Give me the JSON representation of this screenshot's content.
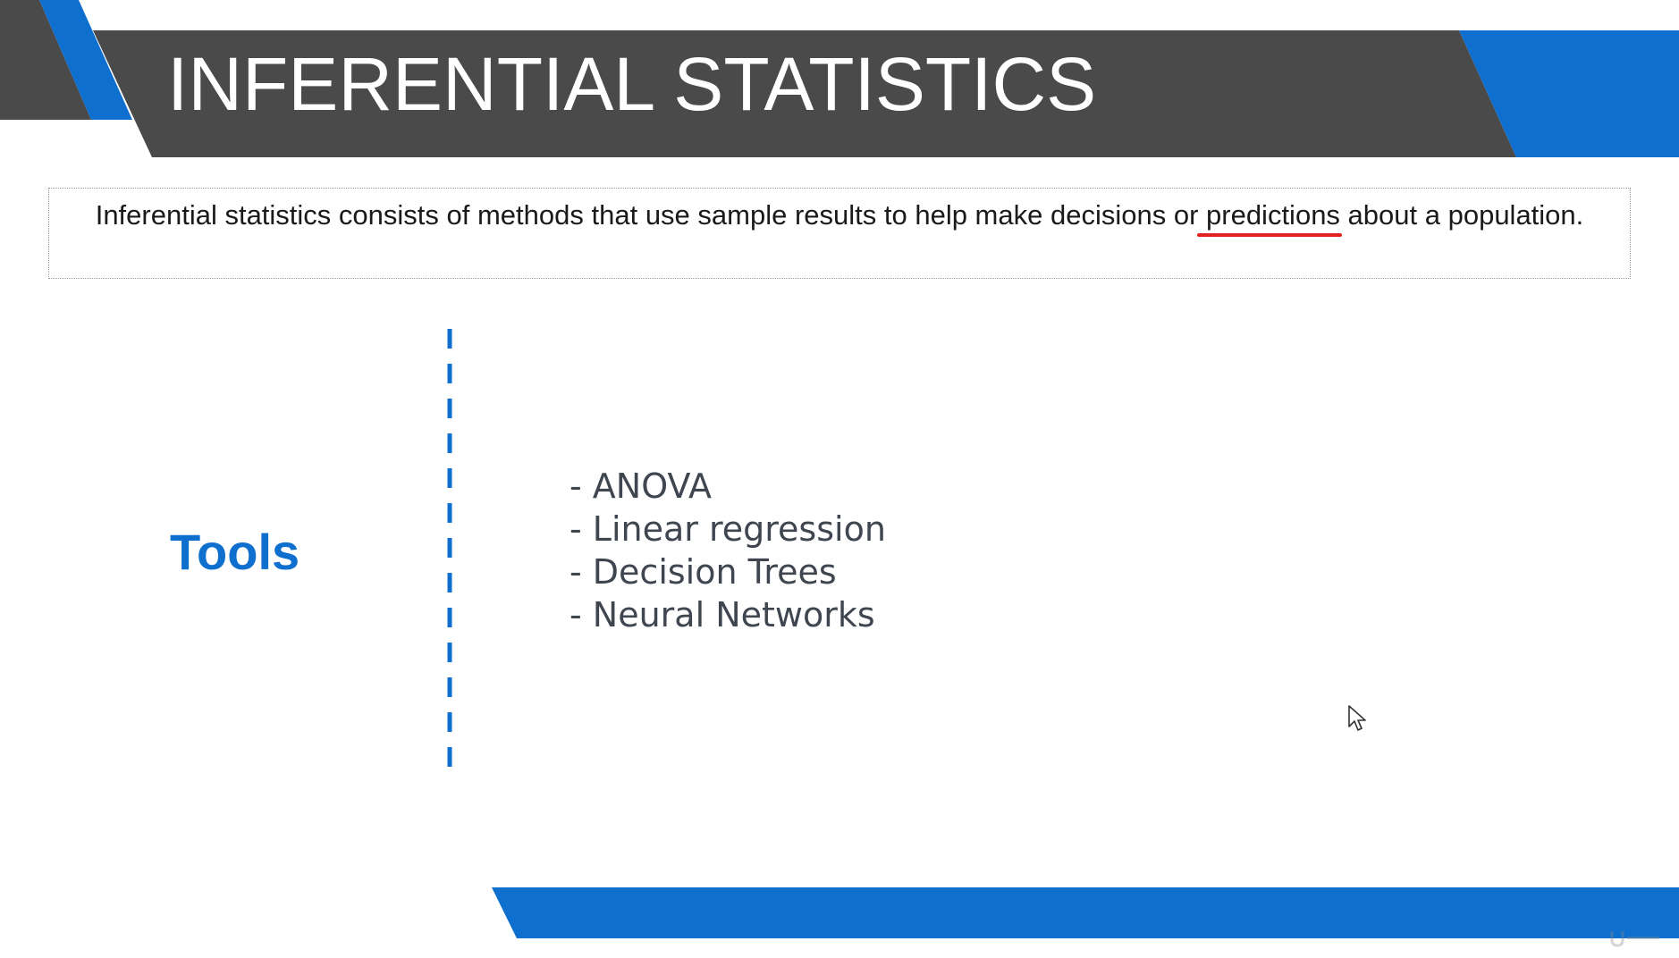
{
  "slide": {
    "title": "INFERENTIAL STATISTICS",
    "definition": {
      "before": "Inferential statistics consists of methods that use sample results to help make decisions or ",
      "highlight": "predictions",
      "after": " about a population."
    },
    "tools": {
      "label": "Tools",
      "items": [
        "- ANOVA",
        "- Linear regression",
        "- Decision Trees",
        "- Neural Networks"
      ]
    }
  },
  "colors": {
    "header_dark": "#4a4a4a",
    "accent_blue": "#0f6fcf",
    "underline_red": "#e0231d",
    "list_text": "#3f4650"
  },
  "icons": {
    "cursor": "mouse-pointer-icon",
    "watermark": "udemy-logo-icon"
  }
}
